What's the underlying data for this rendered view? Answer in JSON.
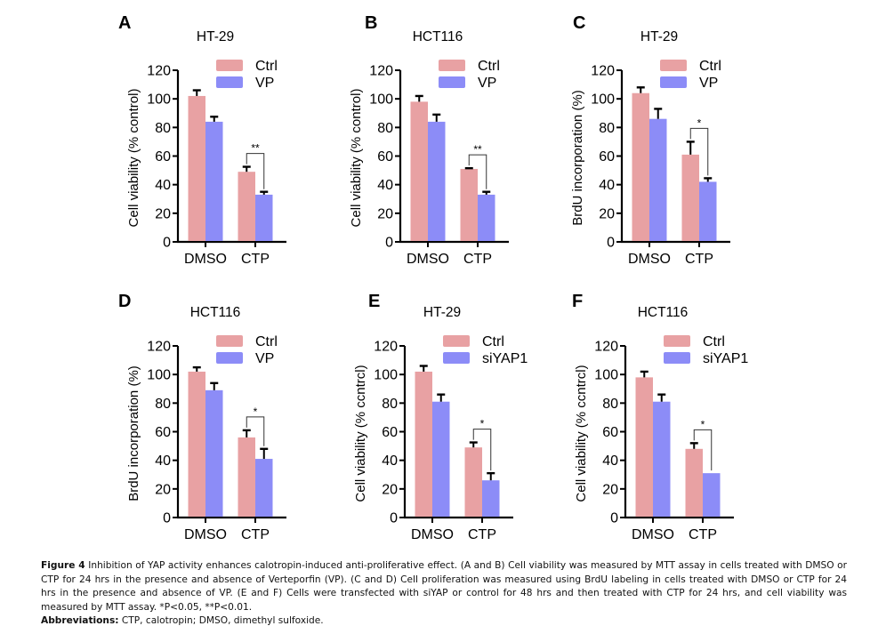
{
  "figure": {
    "caption_title": "Figure 4",
    "caption_lines": [
      " Inhibition of YAP activity enhances calotropin-induced anti-proliferative effect. (A and B) Cell viability was measured by MTT assay in cells treated with DMSO or",
      "CTP for 24 hrs in the presence and absence of Verteporfin (VP). (C and D) Cell proliferation was measured using BrdU labeling in cells treated with DMSO or CTP for 24",
      "hrs in the presence and absence of VP. (E and F) Cells were transfected with siYAP or control for 48 hrs and then treated with CTP for 24 hrs, and cell viability was",
      "measured by MTT assay. *P<0.05, **P<0.01."
    ],
    "abbreviations_label": "Abbreviations:",
    "abbreviations_text": " CTP, calotropin; DMSO, dimethyl sulfoxide."
  },
  "colors": {
    "ctrl": "#E8A1A3",
    "treatment": "#8C8CF7",
    "axis": "#000000"
  },
  "chart_data": [
    {
      "panel": "A",
      "type": "bar",
      "title": "HT-29",
      "ylabel": "Cell viability (% control)",
      "xlabel": "",
      "categories": [
        "DMSO",
        "CTP"
      ],
      "ylim": [
        0,
        120
      ],
      "yticks": [
        0,
        20,
        40,
        60,
        80,
        100,
        120
      ],
      "legend": "top-right",
      "series": [
        {
          "name": "Ctrl",
          "values": [
            102,
            49
          ],
          "errors": [
            4,
            3.5
          ]
        },
        {
          "name": "VP",
          "values": [
            84,
            33
          ],
          "errors": [
            3.5,
            2
          ]
        }
      ],
      "annotations": [
        {
          "category": "CTP",
          "text": "**"
        }
      ]
    },
    {
      "panel": "B",
      "type": "bar",
      "title": "HCT116",
      "ylabel": "Cell viability (% control)",
      "xlabel": "",
      "categories": [
        "DMSO",
        "CTP"
      ],
      "ylim": [
        0,
        120
      ],
      "yticks": [
        0,
        20,
        40,
        60,
        80,
        100,
        120
      ],
      "legend": "top-right",
      "series": [
        {
          "name": "Ctrl",
          "values": [
            98,
            51
          ],
          "errors": [
            4,
            0.5
          ]
        },
        {
          "name": "VP",
          "values": [
            84,
            33
          ],
          "errors": [
            5,
            2
          ]
        }
      ],
      "annotations": [
        {
          "category": "CTP",
          "text": "**"
        }
      ]
    },
    {
      "panel": "C",
      "type": "bar",
      "title": "HT-29",
      "ylabel": "BrdU incorporation (%)",
      "xlabel": "",
      "categories": [
        "DMSO",
        "CTP"
      ],
      "ylim": [
        0,
        120
      ],
      "yticks": [
        0,
        20,
        40,
        60,
        80,
        100,
        120
      ],
      "legend": "top-right",
      "series": [
        {
          "name": "Ctrl",
          "values": [
            104,
            61
          ],
          "errors": [
            4,
            9
          ]
        },
        {
          "name": "VP",
          "values": [
            86,
            42
          ],
          "errors": [
            7,
            2.5
          ]
        }
      ],
      "annotations": [
        {
          "category": "CTP",
          "text": "*"
        }
      ]
    },
    {
      "panel": "D",
      "type": "bar",
      "title": "HCT116",
      "ylabel": "BrdU incorporation (%)",
      "xlabel": "",
      "categories": [
        "DMSO",
        "CTP"
      ],
      "ylim": [
        0,
        120
      ],
      "yticks": [
        0,
        20,
        40,
        60,
        80,
        100,
        120
      ],
      "legend": "top-right",
      "series": [
        {
          "name": "Ctrl",
          "values": [
            102,
            56
          ],
          "errors": [
            3,
            5
          ]
        },
        {
          "name": "VP",
          "values": [
            89,
            41
          ],
          "errors": [
            5,
            7
          ]
        }
      ],
      "annotations": [
        {
          "category": "CTP",
          "text": "*"
        }
      ]
    },
    {
      "panel": "E",
      "type": "bar",
      "title": "HT-29",
      "ylabel": "Cell viability (% ccntrcl)",
      "xlabel": "",
      "categories": [
        "DMSO",
        "CTP"
      ],
      "ylim": [
        0,
        120
      ],
      "yticks": [
        0,
        20,
        40,
        60,
        80,
        100,
        120
      ],
      "legend": "top-right",
      "series": [
        {
          "name": "Ctrl",
          "values": [
            102,
            49
          ],
          "errors": [
            4,
            3.5
          ]
        },
        {
          "name": "siYAP1",
          "values": [
            81,
            26
          ],
          "errors": [
            5,
            5
          ]
        }
      ],
      "annotations": [
        {
          "category": "CTP",
          "text": "*"
        }
      ]
    },
    {
      "panel": "F",
      "type": "bar",
      "title": "HCT116",
      "ylabel": "Cell viability (% ccntrcl)",
      "xlabel": "",
      "categories": [
        "DMSO",
        "CTP"
      ],
      "ylim": [
        0,
        120
      ],
      "yticks": [
        0,
        20,
        40,
        60,
        80,
        100,
        120
      ],
      "legend": "top-right",
      "series": [
        {
          "name": "Ctrl",
          "values": [
            98,
            48
          ],
          "errors": [
            4,
            4
          ]
        },
        {
          "name": "siYAP1",
          "values": [
            81,
            31
          ],
          "errors": [
            5,
            0
          ]
        }
      ],
      "annotations": [
        {
          "category": "CTP",
          "text": "*"
        }
      ]
    }
  ]
}
